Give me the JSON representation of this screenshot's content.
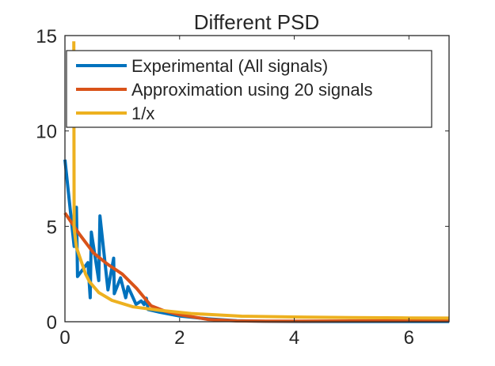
{
  "chart_data": {
    "type": "line",
    "title": "Different PSD",
    "xlabel": "",
    "ylabel": "",
    "xlim": [
      0,
      6.7
    ],
    "ylim": [
      0,
      15
    ],
    "xticks": [
      0,
      2,
      4,
      6
    ],
    "yticks": [
      0,
      5,
      10,
      15
    ],
    "grid": false,
    "legend_placement": "top",
    "series": [
      {
        "name": "Experimental (All signals)",
        "color": "#0072BD",
        "x": [
          0,
          0.16,
          0.2,
          0.22,
          0.4,
          0.44,
          0.46,
          0.59,
          0.61,
          0.75,
          0.85,
          0.86,
          0.97,
          1.06,
          1.1,
          1.24,
          1.33,
          1.38,
          1.42,
          1.45,
          1.65,
          2.0,
          2.5,
          3.0,
          3.5,
          4.5,
          5.5,
          6.7
        ],
        "y": [
          8.5,
          3.95,
          6.0,
          2.37,
          3.1,
          1.26,
          4.7,
          2.16,
          5.55,
          1.67,
          3.33,
          1.47,
          2.3,
          1.26,
          1.84,
          0.91,
          1.09,
          0.9,
          1.23,
          0.64,
          0.5,
          0.3,
          0.15,
          0.05,
          0.02,
          0.01,
          0.01,
          0.01
        ]
      },
      {
        "name": "Approximation using 20 signals",
        "color": "#D95319",
        "x": [
          0,
          0.25,
          0.5,
          0.75,
          1.0,
          1.25,
          1.5,
          1.75,
          2.0,
          2.5,
          3.0,
          3.5,
          4.0,
          5.0,
          6.0,
          6.7
        ],
        "y": [
          5.7,
          4.6,
          3.6,
          3.0,
          2.5,
          1.75,
          0.84,
          0.55,
          0.37,
          0.12,
          0.04,
          0.03,
          0.03,
          0.04,
          0.05,
          0.05
        ]
      },
      {
        "name": "1/x",
        "color": "#EDB120",
        "x": [
          0.155,
          0.16,
          0.2,
          0.36,
          0.43,
          0.59,
          0.82,
          1.19,
          1.65,
          2.2,
          3.08,
          4.0,
          5.0,
          6.0,
          6.7
        ],
        "y": [
          14.7,
          4.9,
          3.9,
          2.5,
          2.09,
          1.53,
          1.12,
          0.78,
          0.6,
          0.43,
          0.29,
          0.25,
          0.22,
          0.2,
          0.19
        ]
      }
    ]
  }
}
